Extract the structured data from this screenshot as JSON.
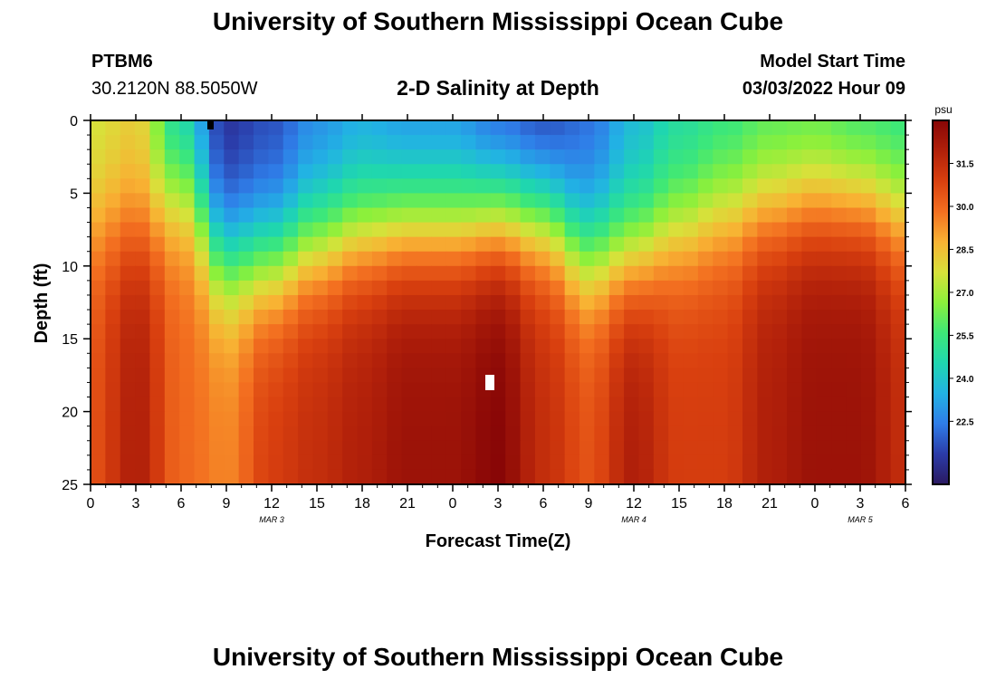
{
  "header": {
    "title": "University of Southern Mississippi Ocean Cube",
    "footer_title": "University of Southern Mississippi Ocean Cube"
  },
  "station": {
    "id": "PTBM6",
    "coords": "30.2120N  88.5050W"
  },
  "model": {
    "start_label": "Model Start Time",
    "start_value": "03/03/2022 Hour 09"
  },
  "colors": {
    "ramp": [
      "#2a1960",
      "#2b3ba8",
      "#2f7de8",
      "#22b2e4",
      "#1fd6b0",
      "#3ee877",
      "#8cf03b",
      "#d8e13a",
      "#f8b233",
      "#f36f20",
      "#d9400f",
      "#b1200a",
      "#880606"
    ],
    "missing_white": "#ffffff",
    "missing_black": "#000000"
  },
  "chart_data": {
    "type": "heatmap",
    "title": "2-D Salinity at Depth",
    "xlabel": "Forecast Time(Z)",
    "ylabel": "Depth (ft)",
    "x_hours": [
      0,
      3,
      6,
      9,
      12,
      15,
      18,
      21,
      24,
      27,
      30,
      33,
      36,
      39,
      42,
      45,
      48,
      51,
      54
    ],
    "x_tick_labels": [
      "0",
      "3",
      "6",
      "9",
      "12",
      "15",
      "18",
      "21",
      "0",
      "3",
      "6",
      "9",
      "12",
      "15",
      "18",
      "21",
      "0",
      "3",
      "6"
    ],
    "xlim": [
      0,
      54
    ],
    "y_ticks": [
      0,
      5,
      10,
      15,
      20,
      25
    ],
    "y_tick_labels": [
      "0",
      "5",
      "10",
      "15",
      "20",
      "25"
    ],
    "ylim": [
      0,
      25
    ],
    "date_labels": [
      {
        "hour": 12,
        "text": "MAR 3"
      },
      {
        "hour": 36,
        "text": "MAR 4"
      },
      {
        "hour": 51,
        "text": "MAR 5"
      }
    ],
    "colorbar": {
      "unit": "psu",
      "min": 20.3,
      "max": 33.0,
      "ticks": [
        22.5,
        24.0,
        25.5,
        27.0,
        28.5,
        30.0,
        31.5
      ],
      "tick_labels": [
        "22.5",
        "24.0",
        "25.5",
        "27.0",
        "28.5",
        "30.0",
        "31.5"
      ]
    },
    "halocline_depth_ft": [
      7.5,
      7.5,
      5.0,
      9.5,
      9.5,
      8.3,
      7.5,
      7.0,
      7.0,
      6.5,
      6.5,
      9.0,
      9.0,
      7.5,
      6.5,
      6.0,
      5.5,
      5.5,
      6.5
    ],
    "surface_salinity_psu": [
      27.5,
      28.0,
      24.0,
      21.0,
      21.5,
      22.5,
      23.0,
      22.5,
      22.5,
      21.5,
      21.0,
      22.0,
      23.5,
      24.5,
      25.0,
      25.5,
      25.5,
      25.0,
      25.0
    ],
    "deep_salinity_psu": [
      30.5,
      32.0,
      30.0,
      29.5,
      31.0,
      31.5,
      32.0,
      32.5,
      32.5,
      33.0,
      31.5,
      30.5,
      32.0,
      31.0,
      31.0,
      32.0,
      32.5,
      32.5,
      31.5
    ]
  }
}
